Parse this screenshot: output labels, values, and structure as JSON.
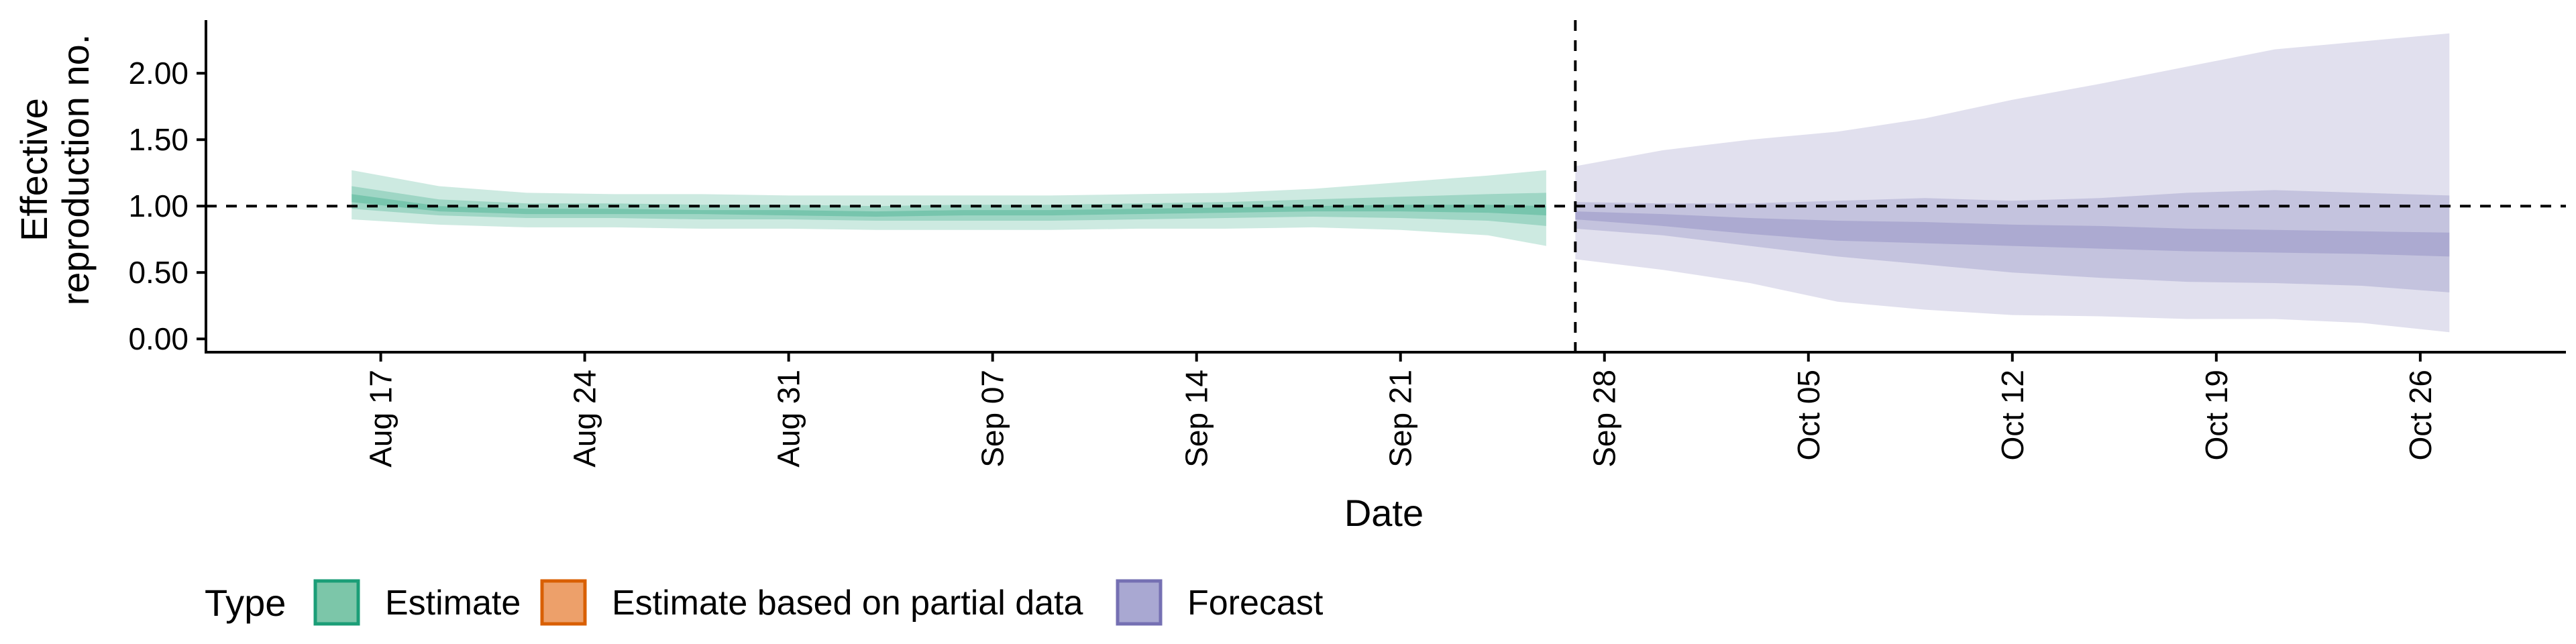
{
  "chart_data": {
    "type": "area",
    "title": "",
    "xlabel": "Date",
    "ylabel_lines": [
      "Effective",
      "reproduction no."
    ],
    "ylim": [
      -0.1,
      2.4
    ],
    "yticks": [
      0.0,
      0.5,
      1.0,
      1.5,
      2.0
    ],
    "ytick_labels": [
      "0.00",
      "0.50",
      "1.00",
      "1.50",
      "2.00"
    ],
    "xlim": [
      "2020-08-11",
      "2020-10-31"
    ],
    "xticks": [
      "2020-08-17",
      "2020-08-24",
      "2020-08-31",
      "2020-09-07",
      "2020-09-14",
      "2020-09-21",
      "2020-09-28",
      "2020-10-05",
      "2020-10-12",
      "2020-10-19",
      "2020-10-26"
    ],
    "xtick_labels": [
      "Aug 17",
      "Aug 24",
      "Aug 31",
      "Sep 07",
      "Sep 14",
      "Sep 21",
      "Sep 28",
      "Oct 05",
      "Oct 12",
      "Oct 19",
      "Oct 26"
    ],
    "reference_line_y": 1.0,
    "forecast_date": "2020-09-27",
    "grid": false,
    "legend": {
      "position": "bottom",
      "title": "Type",
      "items": [
        {
          "label": "Estimate",
          "fill": "#7cc6a9",
          "stroke": "#1b9e77"
        },
        {
          "label": "Estimate based on partial data",
          "fill": "#eda06a",
          "stroke": "#d95f02"
        },
        {
          "label": "Forecast",
          "fill": "#a9a8d2",
          "stroke": "#7570b3"
        }
      ]
    },
    "series": [
      {
        "name": "Estimate",
        "color": "#1b9e77",
        "x": [
          "2020-08-16",
          "2020-08-19",
          "2020-08-22",
          "2020-08-25",
          "2020-08-28",
          "2020-08-31",
          "2020-09-03",
          "2020-09-06",
          "2020-09-09",
          "2020-09-12",
          "2020-09-15",
          "2020-09-18",
          "2020-09-21",
          "2020-09-24",
          "2020-09-26"
        ],
        "lower_90": [
          0.9,
          0.86,
          0.84,
          0.84,
          0.83,
          0.83,
          0.82,
          0.82,
          0.82,
          0.83,
          0.83,
          0.84,
          0.82,
          0.78,
          0.7
        ],
        "lower_50": [
          0.98,
          0.93,
          0.91,
          0.91,
          0.9,
          0.9,
          0.89,
          0.89,
          0.89,
          0.9,
          0.91,
          0.92,
          0.91,
          0.89,
          0.85
        ],
        "lower_20": [
          1.03,
          0.96,
          0.94,
          0.94,
          0.94,
          0.93,
          0.92,
          0.93,
          0.93,
          0.94,
          0.95,
          0.96,
          0.96,
          0.95,
          0.93
        ],
        "upper_20": [
          1.09,
          1.0,
          0.98,
          0.98,
          0.97,
          0.97,
          0.96,
          0.97,
          0.97,
          0.98,
          0.99,
          1.0,
          1.01,
          1.01,
          1.0
        ],
        "upper_50": [
          1.15,
          1.05,
          1.02,
          1.02,
          1.01,
          1.01,
          1.0,
          1.01,
          1.01,
          1.02,
          1.03,
          1.05,
          1.07,
          1.09,
          1.1
        ],
        "upper_90": [
          1.27,
          1.15,
          1.1,
          1.09,
          1.09,
          1.08,
          1.08,
          1.08,
          1.08,
          1.09,
          1.1,
          1.13,
          1.18,
          1.23,
          1.27
        ]
      },
      {
        "name": "Forecast",
        "color": "#7570b3",
        "x": [
          "2020-09-27",
          "2020-09-30",
          "2020-10-03",
          "2020-10-06",
          "2020-10-09",
          "2020-10-12",
          "2020-10-15",
          "2020-10-18",
          "2020-10-21",
          "2020-10-24",
          "2020-10-27"
        ],
        "lower_90": [
          0.6,
          0.52,
          0.42,
          0.28,
          0.22,
          0.18,
          0.17,
          0.15,
          0.15,
          0.12,
          0.05
        ],
        "lower_50": [
          0.83,
          0.78,
          0.7,
          0.62,
          0.56,
          0.5,
          0.46,
          0.43,
          0.42,
          0.4,
          0.35
        ],
        "lower_20": [
          0.9,
          0.85,
          0.79,
          0.74,
          0.72,
          0.7,
          0.68,
          0.66,
          0.65,
          0.64,
          0.62
        ],
        "upper_20": [
          0.96,
          0.94,
          0.91,
          0.89,
          0.88,
          0.86,
          0.85,
          0.83,
          0.82,
          0.81,
          0.8
        ],
        "upper_50": [
          1.03,
          1.02,
          1.02,
          1.04,
          1.06,
          1.04,
          1.06,
          1.1,
          1.12,
          1.1,
          1.08
        ],
        "upper_90": [
          1.3,
          1.42,
          1.5,
          1.56,
          1.66,
          1.8,
          1.92,
          2.05,
          2.18,
          2.24,
          2.3
        ]
      }
    ]
  }
}
